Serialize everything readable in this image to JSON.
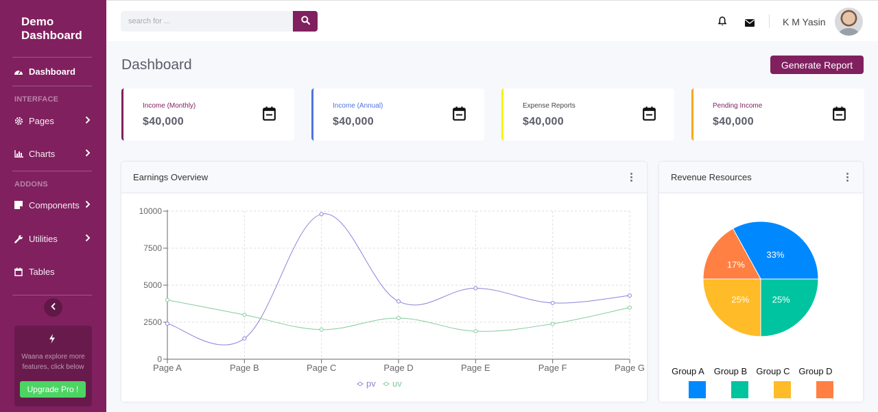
{
  "sidebar": {
    "brand": [
      "Demo",
      "Dashboard"
    ],
    "items": [
      {
        "label": "Dashboard",
        "icon": "dashboard-icon"
      },
      {
        "label": "Pages",
        "icon": "gear-icon"
      },
      {
        "label": "Charts",
        "icon": "bar-chart-icon"
      },
      {
        "label": "Components",
        "icon": "note-icon"
      },
      {
        "label": "Utilities",
        "icon": "wrench-icon"
      },
      {
        "label": "Tables",
        "icon": "calendar-icon"
      }
    ],
    "headings": [
      "INTERFACE",
      "ADDONS"
    ],
    "promo_text": "Waana explore more features, click below",
    "promo_button": "Upgrade Pro !"
  },
  "topbar": {
    "search_placeholder": "search for ...",
    "user_name": "K M Yasin"
  },
  "page": {
    "title": "Dashboard",
    "generate_button": "Generate Report"
  },
  "cards": [
    {
      "label": "Income (Monthly)",
      "value": "$40,000",
      "color": "#80205f"
    },
    {
      "label": "Income (Annual)",
      "value": "$40,000",
      "color": "#4e73df"
    },
    {
      "label": "Expense Reports",
      "value": "$40,000",
      "color": "#f6f20a"
    },
    {
      "label": "Pending Income",
      "value": "$40,000",
      "color": "#f6a623"
    }
  ],
  "earnings": {
    "title": "Earnings Overview"
  },
  "revenue": {
    "title": "Revenue Resources"
  },
  "chart_data": [
    {
      "type": "line",
      "categories": [
        "Page A",
        "Page B",
        "Page C",
        "Page D",
        "Page E",
        "Page F",
        "Page G"
      ],
      "series": [
        {
          "name": "pv",
          "values": [
            2400,
            1398,
            9800,
            3908,
            4800,
            3800,
            4300
          ],
          "color": "#8884d8"
        },
        {
          "name": "uv",
          "values": [
            4000,
            3000,
            2000,
            2780,
            1890,
            2390,
            3490
          ],
          "color": "#82ca9d"
        }
      ],
      "yticks": [
        0,
        2500,
        5000,
        7500,
        10000
      ],
      "ylim": [
        0,
        10000
      ],
      "grid": true,
      "legend": "bottom"
    },
    {
      "type": "pie",
      "slices": [
        {
          "name": "Group A",
          "value": 33,
          "label": "33%",
          "color": "#0088fe"
        },
        {
          "name": "Group D",
          "value": 17,
          "label": "17%",
          "color": "#ff8042"
        },
        {
          "name": "Group C",
          "value": 25,
          "label": "25%",
          "color": "#ffbb28"
        },
        {
          "name": "Group B",
          "value": 25,
          "label": "25%",
          "color": "#00c49f"
        }
      ],
      "legend_order": [
        "Group A",
        "Group B",
        "Group C",
        "Group D"
      ],
      "legend": "bottom"
    }
  ]
}
